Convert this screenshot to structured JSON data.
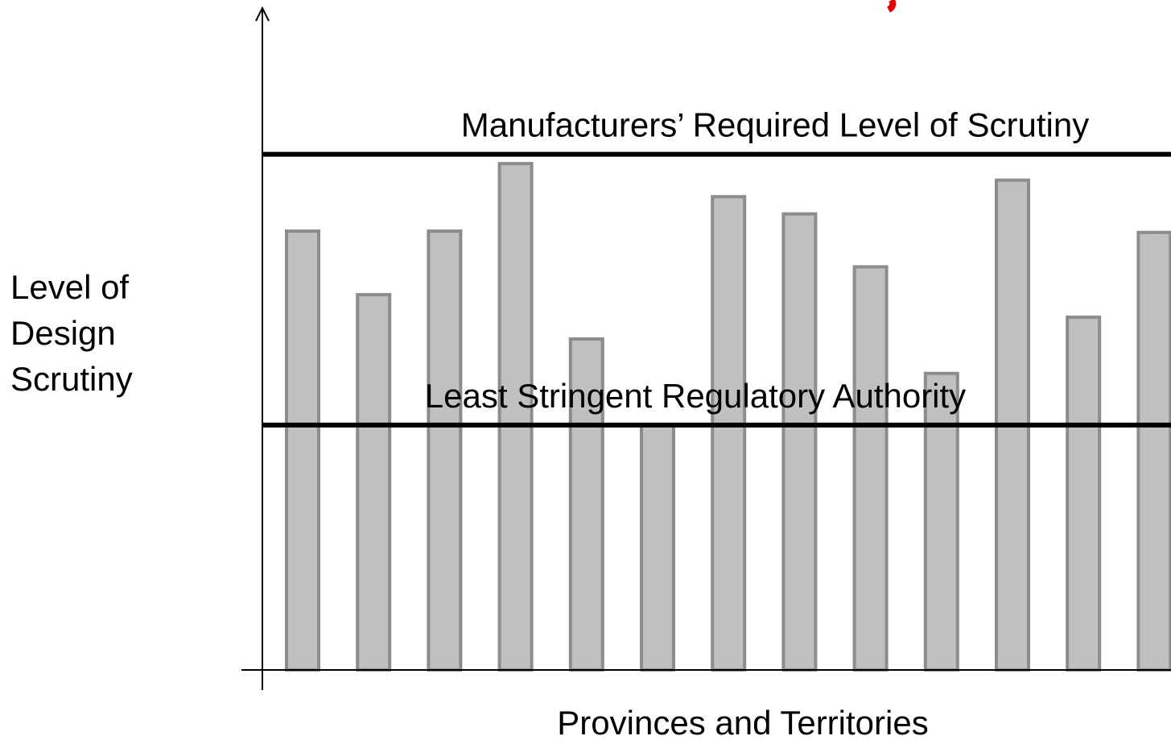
{
  "chart_data": {
    "type": "bar",
    "x_label": "Provinces and Territories",
    "y_label": "Level of Design Scrutiny",
    "categories": [
      null,
      null,
      null,
      null,
      null,
      null,
      null,
      null,
      null,
      null,
      null,
      null,
      null
    ],
    "values": [
      66.3,
      56.7,
      66.3,
      76.5,
      50.0,
      37.0,
      71.5,
      68.9,
      60.9,
      44.8,
      74.0,
      53.3,
      66.1
    ],
    "color": "#c0c0c0",
    "ylim": [
      0,
      100
    ],
    "reference_lines": [
      {
        "label": "Manufacturers’ Required Level of Scrutiny",
        "value": 77.9
      },
      {
        "label": "Least Stringent Regulatory Authority",
        "value": 37.0
      }
    ]
  }
}
